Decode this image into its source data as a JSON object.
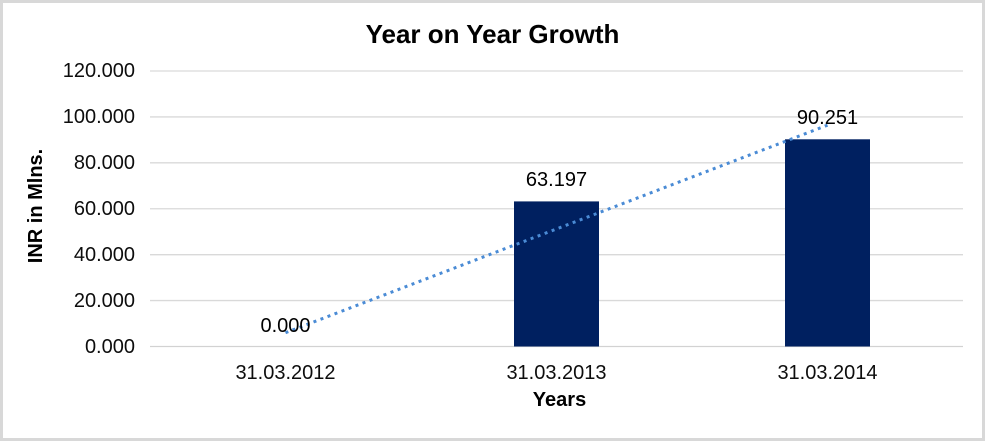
{
  "chart_data": {
    "type": "bar",
    "title": "Year on Year Growth",
    "xlabel": "Years",
    "ylabel": "INR in Mlns.",
    "categories": [
      "31.03.2012",
      "31.03.2013",
      "31.03.2014"
    ],
    "values": [
      0,
      63.197,
      90.251
    ],
    "data_labels": [
      "0.000",
      "63.197",
      "90.251"
    ],
    "ylim": [
      0,
      120
    ],
    "yticks": [
      {
        "value": 0,
        "label": "0.000"
      },
      {
        "value": 20,
        "label": "20.000"
      },
      {
        "value": 40,
        "label": "40.000"
      },
      {
        "value": 60,
        "label": "60.000"
      },
      {
        "value": 80,
        "label": "80.000"
      },
      {
        "value": 100,
        "label": "100.000"
      },
      {
        "value": 120,
        "label": "120.000"
      }
    ],
    "grid": "horizontal-on",
    "legend_position": "none",
    "trendline": {
      "type": "linear",
      "style": "dotted",
      "endpoint_values": [
        6.0,
        96.4
      ]
    },
    "colors": {
      "bar": "#002060",
      "trendline": "#4a8bd5",
      "gridline": "#d9d9d9",
      "axis_line": "#d2d2d2",
      "text": "#000000",
      "background": "#ffffff",
      "border": "#d8d8d8"
    }
  }
}
